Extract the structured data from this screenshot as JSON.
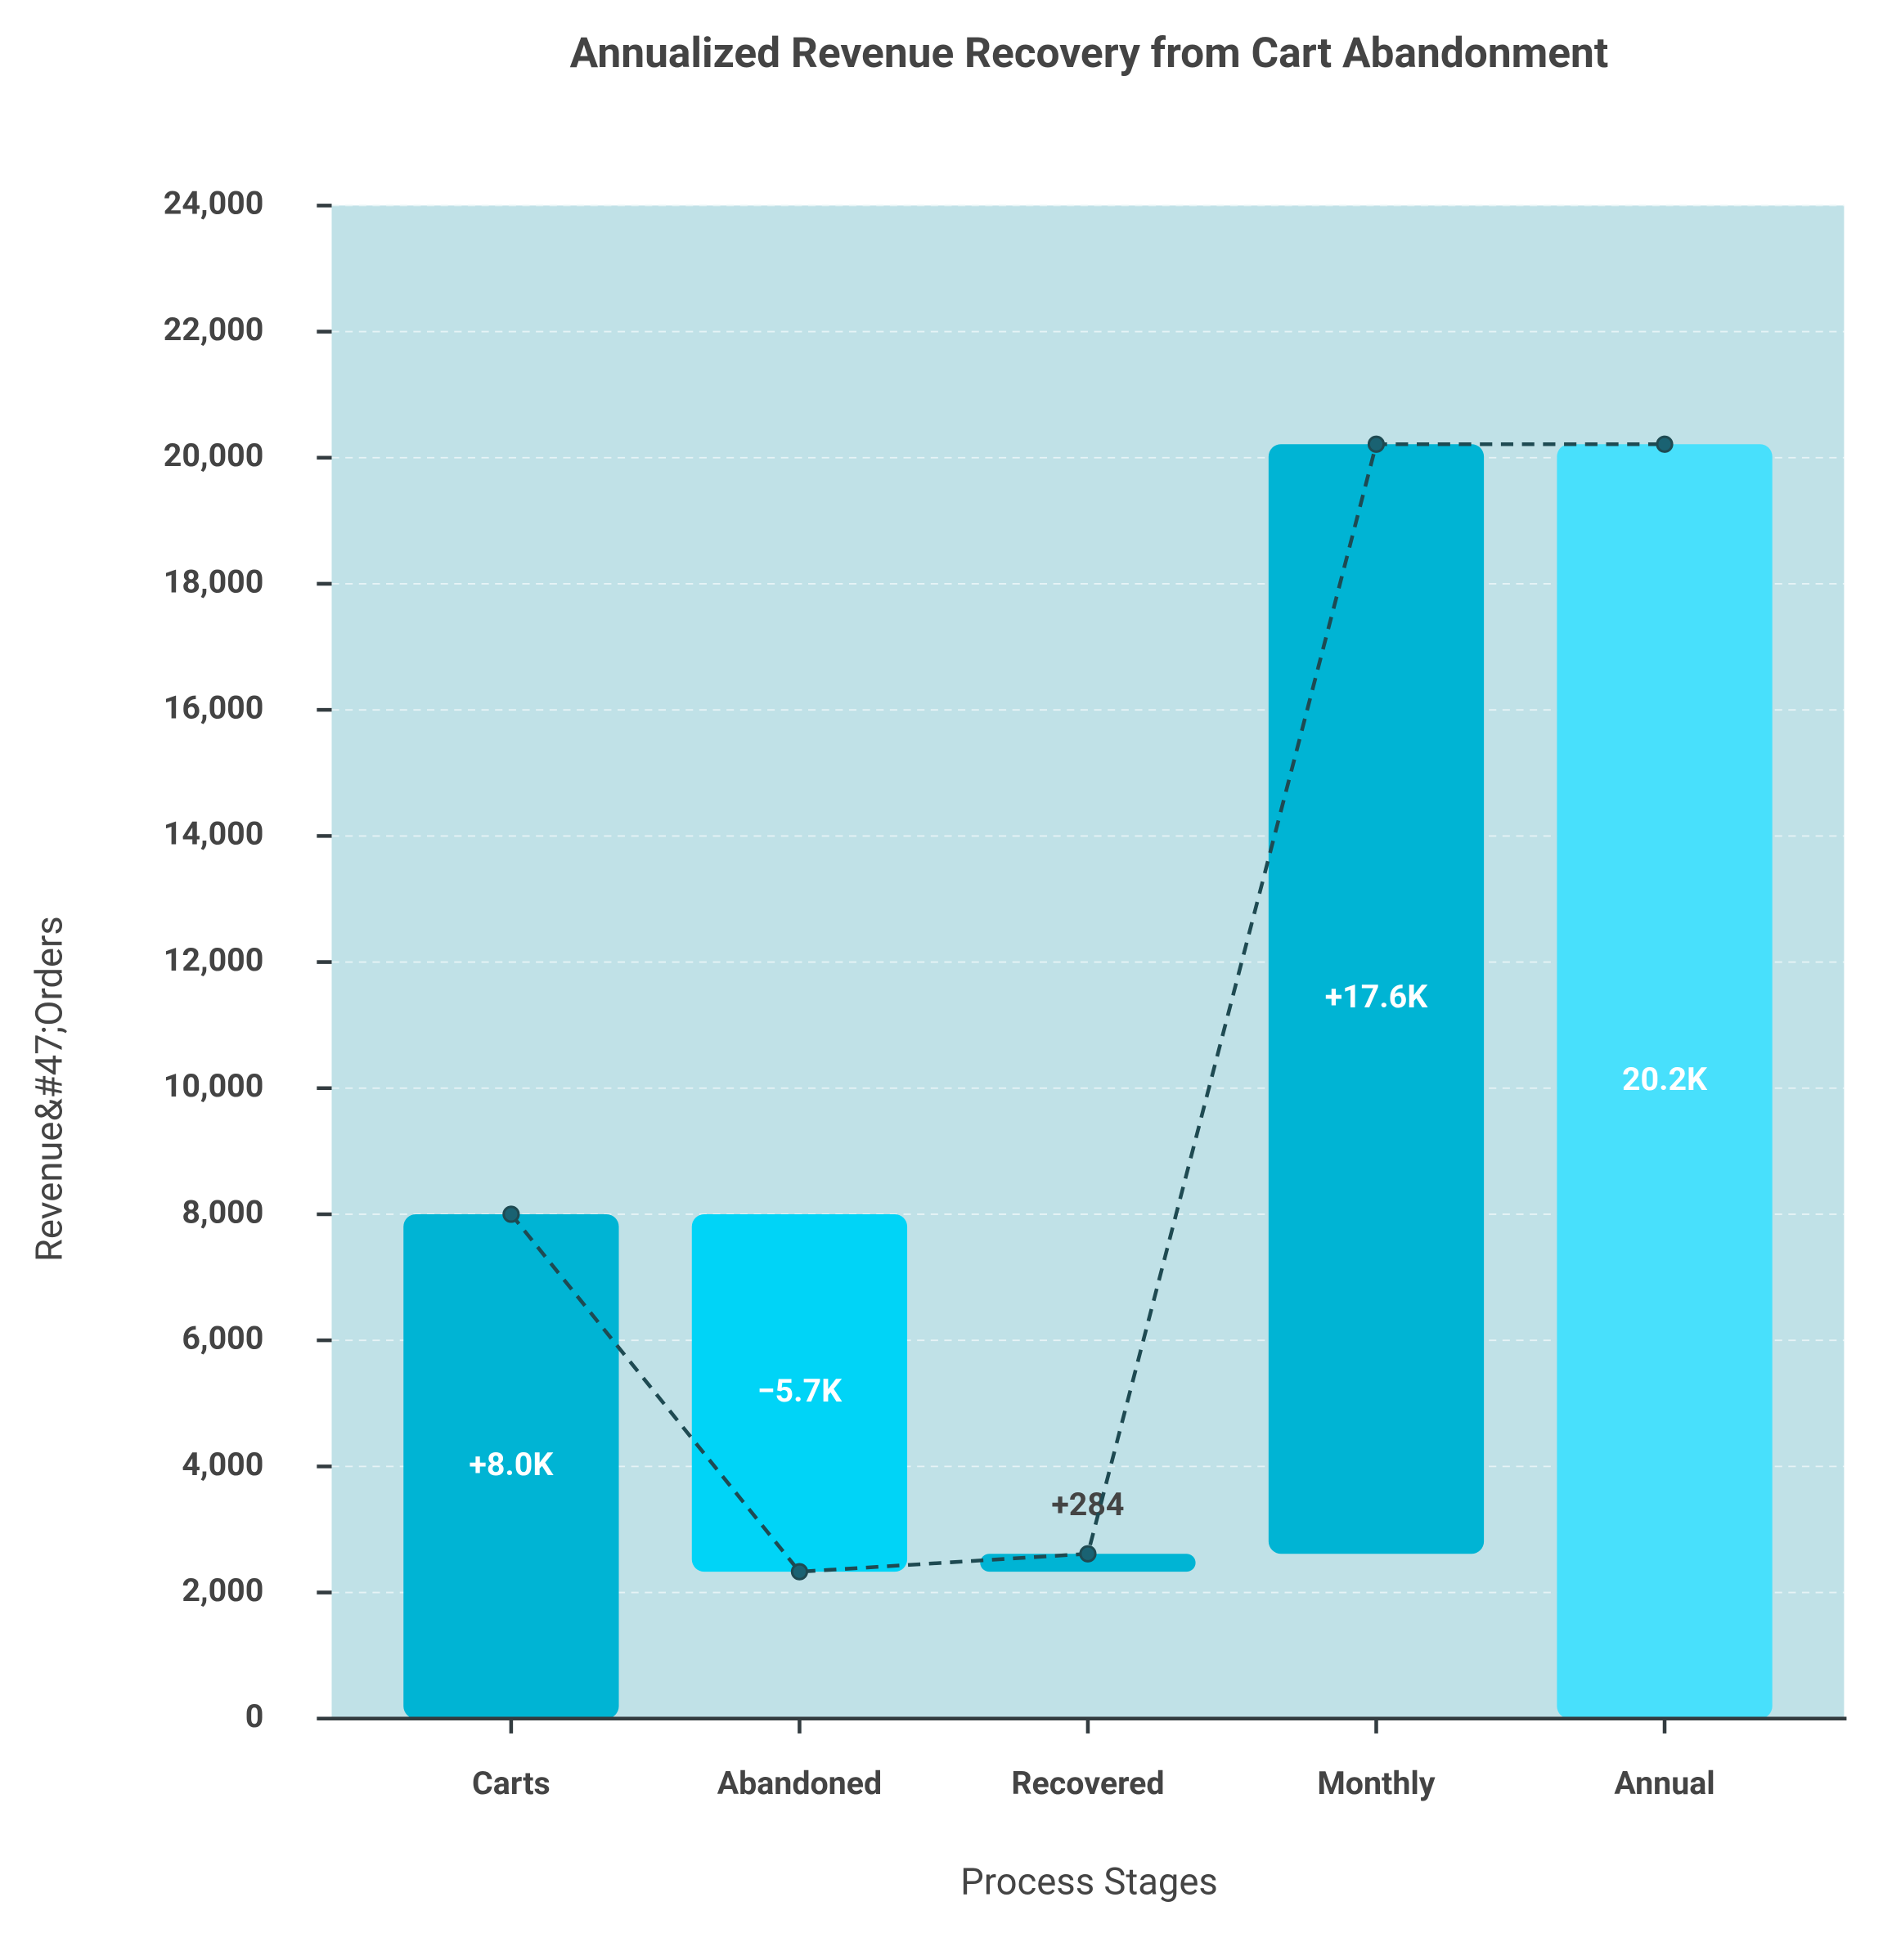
{
  "chart_data": {
    "type": "waterfall",
    "title": "Annualized Revenue Recovery from Cart Abandonment",
    "x_label": "Process Stages",
    "y_label": "Revenue&#47;Orders",
    "categories": [
      "Carts",
      "Abandoned",
      "Recovered",
      "Monthly",
      "Annual"
    ],
    "values": [
      8000,
      -5670,
      284,
      17600,
      20214
    ],
    "value_labels": [
      "+8.0K",
      "−5.7K",
      "+284",
      "+17.6K",
      "20.2K"
    ],
    "measures": [
      "relative",
      "relative",
      "relative",
      "relative",
      "total"
    ],
    "colors": [
      "#00b4d4",
      "#00d4f7",
      "#00b4d4",
      "#00b4d4",
      "#48e0fc"
    ],
    "ylim": [
      0,
      24000
    ],
    "yticks": [
      {
        "value": 0,
        "label": "0"
      },
      {
        "value": 2000,
        "label": "2,000"
      },
      {
        "value": 4000,
        "label": "4,000"
      },
      {
        "value": 6000,
        "label": "6,000"
      },
      {
        "value": 8000,
        "label": "8,000"
      },
      {
        "value": 10000,
        "label": "10,000"
      },
      {
        "value": 12000,
        "label": "12,000"
      },
      {
        "value": 14000,
        "label": "14,000"
      },
      {
        "value": 16000,
        "label": "16,000"
      },
      {
        "value": 18000,
        "label": "18,000"
      },
      {
        "value": 20000,
        "label": "20,000"
      },
      {
        "value": 22000,
        "label": "22,000"
      },
      {
        "value": 24000,
        "label": "24,000"
      }
    ],
    "grid": true
  }
}
